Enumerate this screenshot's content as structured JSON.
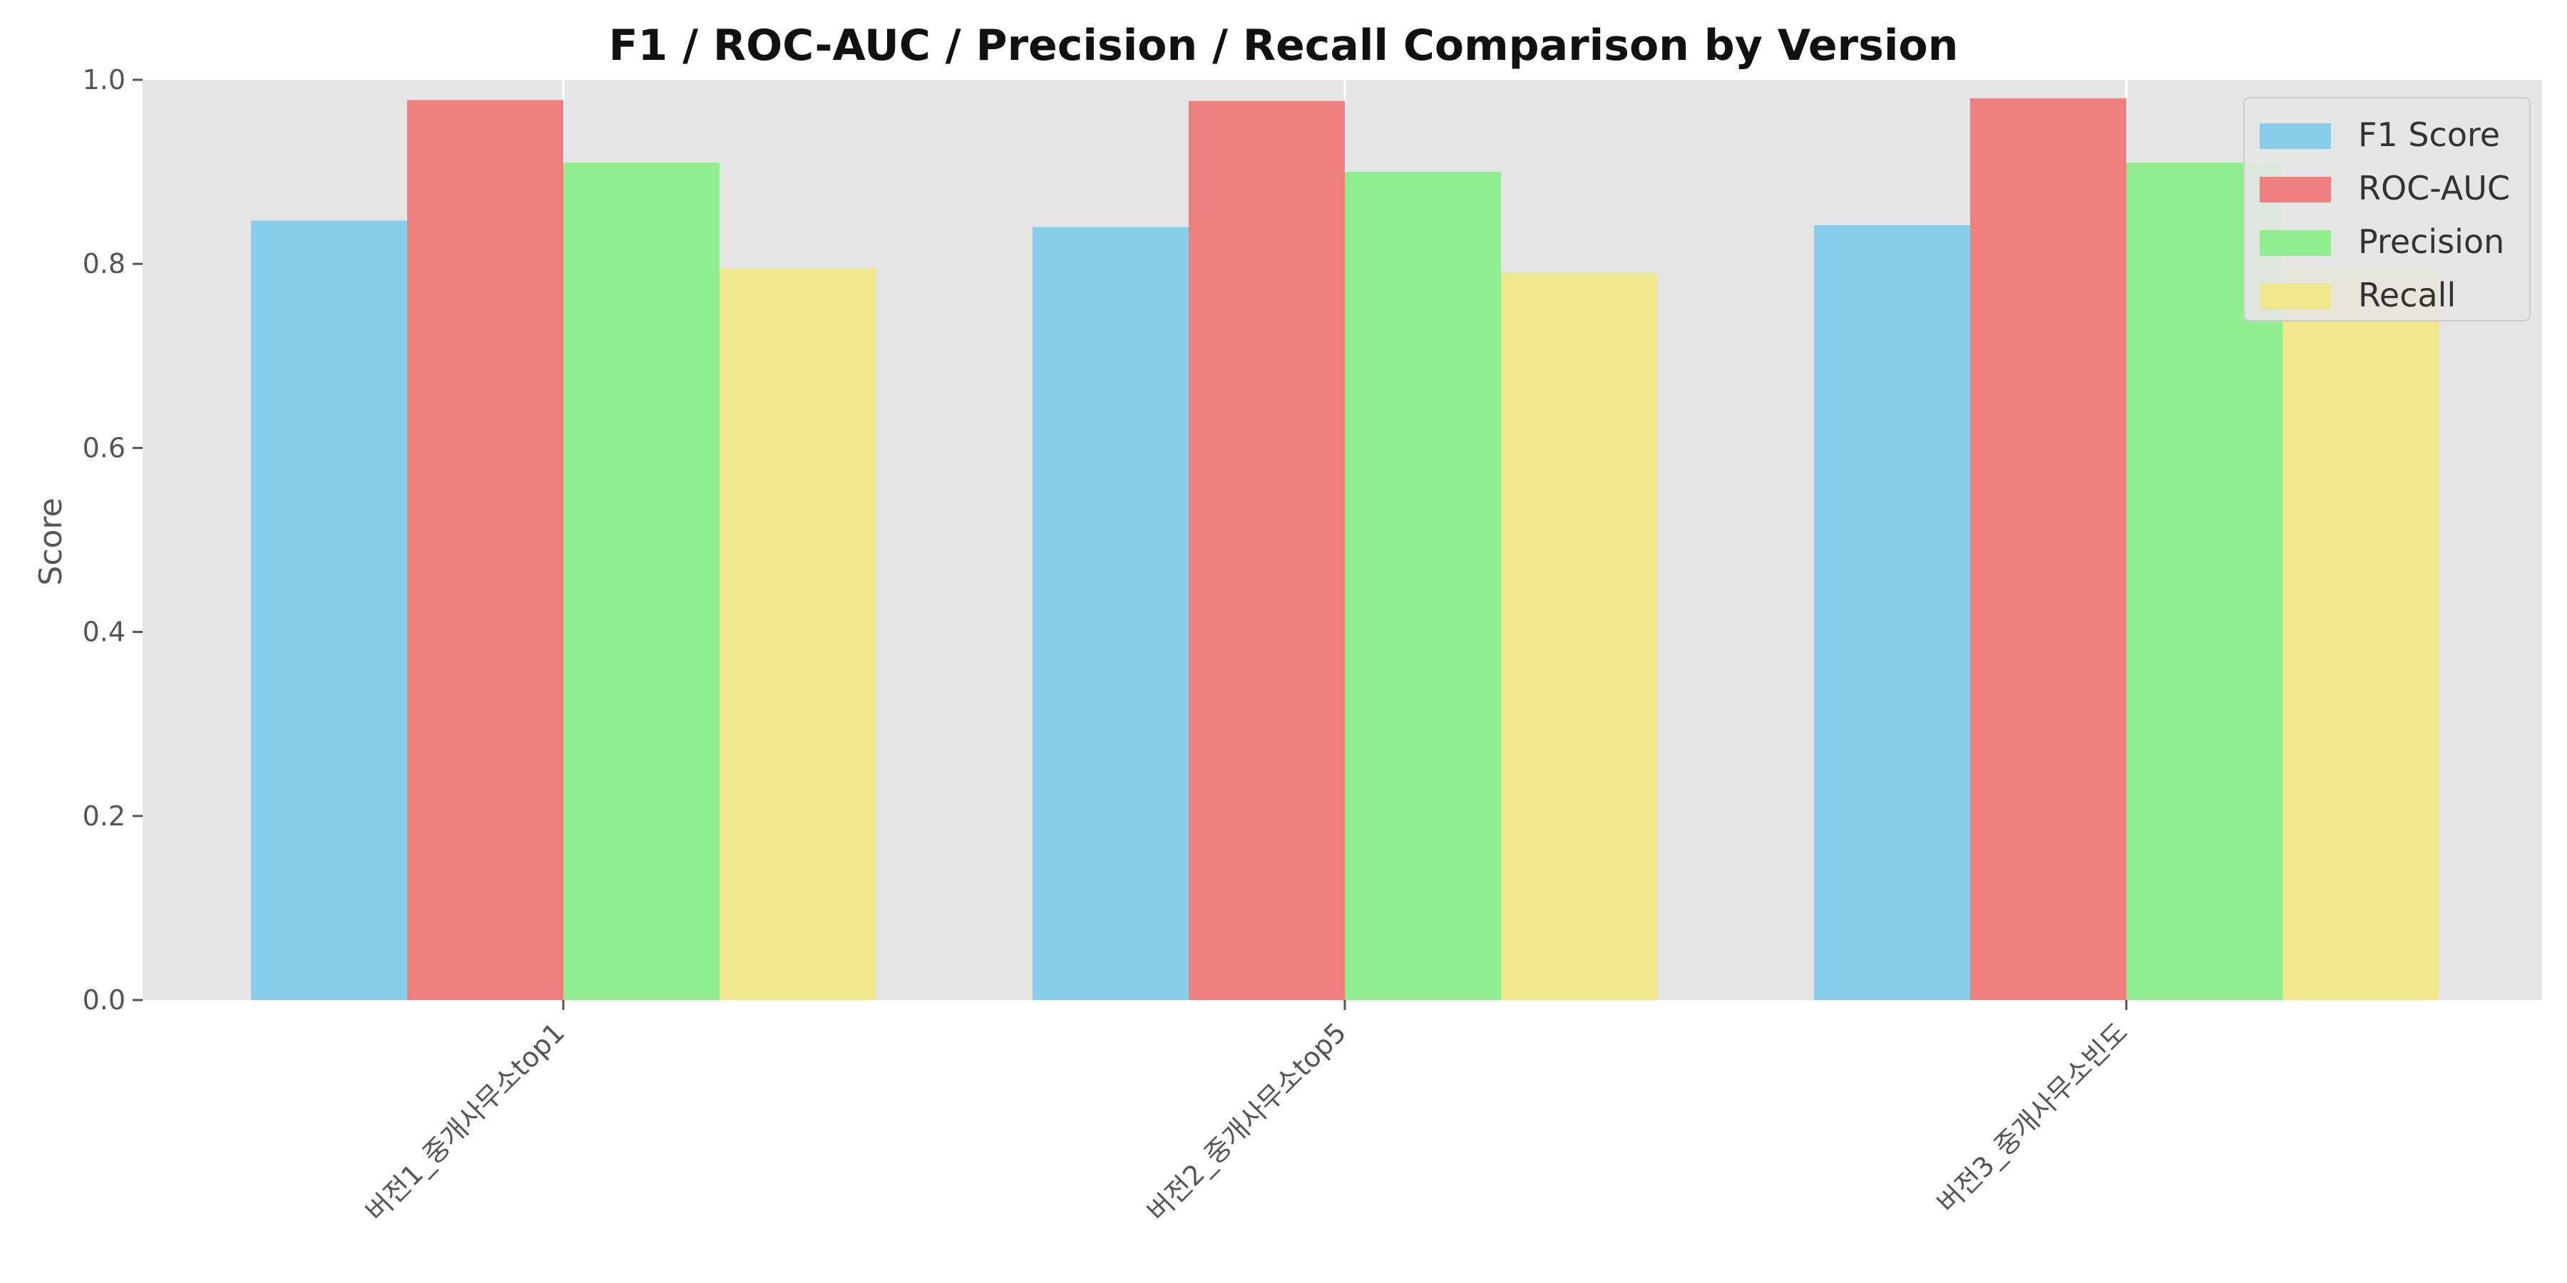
{
  "chart_data": {
    "type": "bar",
    "title": "F1 / ROC-AUC / Precision / Recall Comparison by Version",
    "xlabel": "",
    "ylabel": "Score",
    "ylim": [
      0,
      1.0
    ],
    "yticks": [
      "0.0",
      "0.2",
      "0.4",
      "0.6",
      "0.8",
      "1.0"
    ],
    "grid": true,
    "legend_position": "top-right",
    "categories": [
      "버전1_중개사무소top1",
      "버전2_중개사무소top5",
      "버전3_중개사무소빈도"
    ],
    "series": [
      {
        "name": "F1 Score",
        "color": "#87CEEB",
        "values": [
          0.847,
          0.84,
          0.842
        ]
      },
      {
        "name": "ROC-AUC",
        "color": "#F08080",
        "values": [
          0.978,
          0.977,
          0.98
        ]
      },
      {
        "name": "Precision",
        "color": "#90EE90",
        "values": [
          0.91,
          0.9,
          0.91
        ]
      },
      {
        "name": "Recall",
        "color": "#F0E68C",
        "values": [
          0.795,
          0.79,
          0.792
        ]
      }
    ]
  }
}
